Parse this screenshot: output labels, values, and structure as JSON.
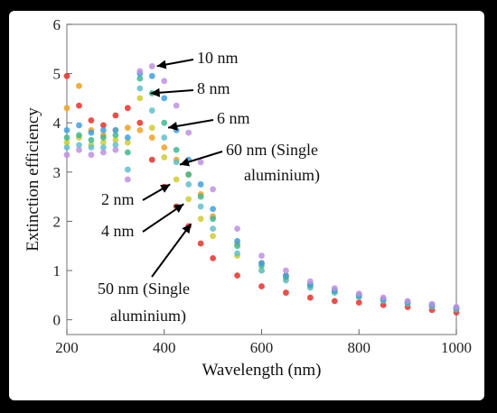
{
  "chart_data": {
    "type": "scatter",
    "xlabel": "Wavelength (nm)",
    "ylabel": "Extinction efficiency",
    "xlim": [
      200,
      1000
    ],
    "ylim": [
      -0.3,
      6
    ],
    "xticks": [
      200,
      400,
      600,
      800,
      1000
    ],
    "yticks": [
      0,
      1,
      2,
      3,
      4,
      5,
      6
    ],
    "grid": false,
    "legend": "none",
    "series": [
      {
        "name": "50 nm (Single aluminium)",
        "color": "#e8302a",
        "x": [
          200,
          225,
          250,
          275,
          300,
          325,
          350,
          375,
          400,
          425,
          450,
          475,
          500,
          550,
          600,
          650,
          700,
          750,
          800,
          850,
          900,
          950,
          1000
        ],
        "y": [
          4.95,
          4.35,
          4.05,
          3.95,
          4.15,
          4.3,
          4.0,
          3.25,
          2.7,
          2.3,
          1.9,
          1.55,
          1.25,
          0.9,
          0.68,
          0.55,
          0.45,
          0.38,
          0.35,
          0.3,
          0.26,
          0.2,
          0.15
        ]
      },
      {
        "name": "60 nm (Single aluminium)",
        "color": "#f0a020",
        "x": [
          200,
          225,
          250,
          275,
          300,
          325,
          350,
          375,
          400,
          425,
          450,
          475,
          500,
          550,
          600,
          650,
          700,
          750,
          800,
          850,
          900,
          950,
          1000
        ],
        "y": [
          4.3,
          4.75,
          3.85,
          3.75,
          3.85,
          3.9,
          3.85,
          3.7,
          3.5,
          3.25,
          2.95,
          2.55,
          2.1,
          1.55,
          1.15,
          0.9,
          0.72,
          0.6,
          0.5,
          0.42,
          0.35,
          0.3,
          0.25
        ]
      },
      {
        "name": "2 nm",
        "color": "#d0cc30",
        "x": [
          200,
          225,
          250,
          275,
          300,
          325,
          350,
          375,
          400,
          425,
          450,
          475,
          500,
          550,
          600,
          650,
          700,
          750,
          800,
          850,
          900,
          950,
          1000
        ],
        "y": [
          3.6,
          3.7,
          3.55,
          3.6,
          3.65,
          3.6,
          4.5,
          3.9,
          3.3,
          2.85,
          2.45,
          2.05,
          1.7,
          1.3,
          1.0,
          0.82,
          0.68,
          0.57,
          0.48,
          0.4,
          0.34,
          0.28,
          0.22
        ]
      },
      {
        "name": "4 nm",
        "color": "#60c0d0",
        "x": [
          200,
          225,
          250,
          275,
          300,
          325,
          350,
          375,
          400,
          425,
          450,
          475,
          500,
          550,
          600,
          650,
          700,
          750,
          800,
          850,
          900,
          950,
          1000
        ],
        "y": [
          3.5,
          3.55,
          3.5,
          3.5,
          3.55,
          3.05,
          4.7,
          4.25,
          3.7,
          3.2,
          2.75,
          2.3,
          1.85,
          1.35,
          1.0,
          0.8,
          0.65,
          0.55,
          0.46,
          0.39,
          0.33,
          0.27,
          0.21
        ]
      },
      {
        "name": "6 nm",
        "color": "#40b890",
        "x": [
          200,
          225,
          250,
          275,
          300,
          325,
          350,
          375,
          400,
          425,
          450,
          475,
          500,
          550,
          600,
          650,
          700,
          750,
          800,
          850,
          900,
          950,
          1000
        ],
        "y": [
          3.7,
          3.75,
          3.65,
          3.7,
          3.75,
          3.4,
          4.9,
          4.6,
          4.0,
          3.45,
          2.95,
          2.5,
          2.05,
          1.5,
          1.1,
          0.87,
          0.7,
          0.58,
          0.49,
          0.41,
          0.35,
          0.29,
          0.23
        ]
      },
      {
        "name": "8 nm",
        "color": "#40a0e0",
        "x": [
          200,
          225,
          250,
          275,
          300,
          325,
          350,
          375,
          400,
          425,
          450,
          475,
          500,
          550,
          600,
          650,
          700,
          750,
          800,
          850,
          900,
          950,
          1000
        ],
        "y": [
          3.85,
          3.95,
          3.8,
          3.85,
          3.85,
          3.7,
          5.0,
          4.95,
          4.5,
          3.85,
          3.25,
          2.75,
          2.25,
          1.6,
          1.15,
          0.9,
          0.72,
          0.6,
          0.5,
          0.42,
          0.36,
          0.3,
          0.24
        ]
      },
      {
        "name": "10 nm",
        "color": "#c090e0",
        "x": [
          200,
          225,
          250,
          275,
          300,
          325,
          350,
          375,
          400,
          425,
          450,
          475,
          500,
          550,
          600,
          650,
          700,
          750,
          800,
          850,
          900,
          950,
          1000
        ],
        "y": [
          3.35,
          3.45,
          3.35,
          3.4,
          3.45,
          2.85,
          5.05,
          5.15,
          4.85,
          4.35,
          3.8,
          3.2,
          2.65,
          1.85,
          1.3,
          1.0,
          0.78,
          0.64,
          0.53,
          0.45,
          0.38,
          0.32,
          0.26
        ]
      }
    ],
    "annotations": [
      {
        "text": "10 nm",
        "target": [
          385,
          5.15
        ]
      },
      {
        "text": "8 nm",
        "target": [
          372,
          4.6
        ]
      },
      {
        "text": "6 nm",
        "target": [
          408,
          3.9
        ]
      },
      {
        "text": "60 nm (Single",
        "text2": "aluminium)",
        "target": [
          432,
          3.15
        ]
      },
      {
        "text": "2 nm",
        "target": [
          412,
          2.75
        ]
      },
      {
        "text": "4 nm",
        "target": [
          440,
          2.35
        ]
      },
      {
        "text": "50 nm (Single",
        "text2": "aluminium)",
        "target": [
          455,
          1.95
        ]
      }
    ]
  }
}
